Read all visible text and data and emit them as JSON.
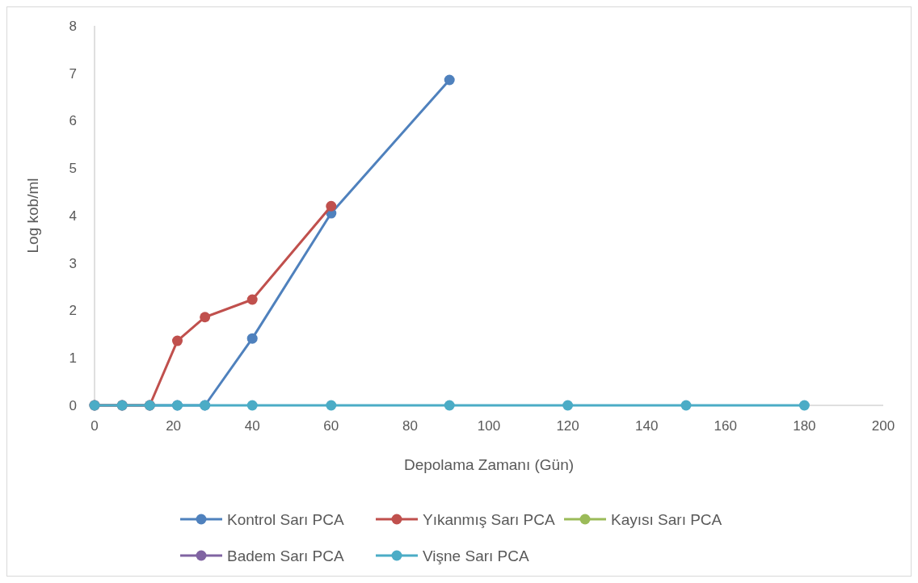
{
  "chart_data": {
    "type": "line",
    "xlabel": "Depolama Zamanı (Gün)",
    "ylabel": "Log kob/ml",
    "xlim": [
      0,
      200
    ],
    "xticks": [
      0,
      20,
      40,
      60,
      80,
      100,
      120,
      140,
      160,
      180,
      200
    ],
    "ylim": [
      0,
      8
    ],
    "yticks": [
      0,
      1,
      2,
      3,
      4,
      5,
      6,
      7,
      8
    ],
    "grid": false,
    "legend": "bottom",
    "marker": "circle",
    "line_style": "solid",
    "series": [
      {
        "name": "Kontrol Sarı PCA",
        "color": "#4f81bd",
        "x": [
          0,
          7,
          14,
          21,
          28,
          40,
          60,
          90
        ],
        "values": [
          0,
          0,
          0,
          0,
          0,
          1.41,
          4.05,
          6.86
        ]
      },
      {
        "name": "Yıkanmış Sarı PCA",
        "color": "#c0504d",
        "x": [
          0,
          7,
          14,
          21,
          28,
          40,
          60
        ],
        "values": [
          0,
          0,
          0,
          1.36,
          1.86,
          2.23,
          4.2
        ]
      },
      {
        "name": "Kayısı Sarı PCA",
        "color": "#9bbb59"
      },
      {
        "name": "Badem Sarı PCA",
        "color": "#8064a2"
      },
      {
        "name": "Vişne Sarı PCA",
        "color": "#4bacc6",
        "x": [
          0,
          7,
          14,
          21,
          28,
          40,
          60,
          90,
          120,
          150,
          180
        ],
        "values": [
          0,
          0,
          0,
          0,
          0,
          0,
          0,
          0,
          0,
          0,
          0
        ]
      }
    ]
  }
}
